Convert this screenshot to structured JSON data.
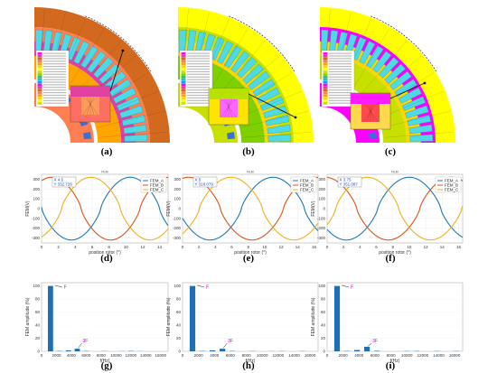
{
  "labels": {
    "a": "(a)",
    "b": "(b)",
    "c": "(c)",
    "d": "(d)",
    "e": "(e)",
    "f": "(f)",
    "g": "(g)",
    "h": "(h)",
    "i": "(i)"
  },
  "motor": {
    "colors": [
      "#ff00ff",
      "#e040a0",
      "#d2691e",
      "#ff7f50",
      "#ffa500",
      "#ffd700",
      "#ffff00",
      "#c8e000",
      "#7fd000",
      "#3cb371",
      "#00ced1",
      "#1e90ff"
    ],
    "copper_color": "#4dd9e6",
    "magnet_color": "#3b6fd6"
  },
  "fem": {
    "xlabel": "position rotor (°)",
    "ylabel": "FEM(V)",
    "colors": [
      "#1f77b4",
      "#d95319",
      "#edb120"
    ],
    "legend": [
      "FEM_A",
      "FEM_B",
      "FEM_C"
    ],
    "panels": [
      {
        "title": "FEM",
        "tip_x": "X 4.5",
        "tip_y": "Y 332.726"
      },
      {
        "title": "FEM",
        "tip_x": "X 5",
        "tip_y": "Y 318.079"
      },
      {
        "title": "FEM",
        "tip_x": "X 3.75",
        "tip_y": "Y 351.087"
      }
    ]
  },
  "spectrum": {
    "xlabel": "f(Hz)",
    "ylabel": "FEM amplitude (%)",
    "bar_color": "#1f6fb4",
    "annot_main": "F",
    "annot_third": "3F"
  },
  "chart_data": [
    {
      "type": "line",
      "panel": "d",
      "xlabel": "position rotor (°)",
      "ylabel": "FEM(V)",
      "xlim": [
        0,
        15
      ],
      "ylim": [
        -350,
        350
      ],
      "x_ticks": [
        0,
        2,
        4,
        6,
        8,
        10,
        12,
        14
      ],
      "y_ticks": [
        -300,
        -200,
        -100,
        0,
        100,
        200,
        300
      ],
      "series": [
        {
          "name": "FEM_A"
        },
        {
          "name": "FEM_B"
        },
        {
          "name": "FEM_C"
        }
      ]
    },
    {
      "type": "line",
      "panel": "e",
      "xlabel": "position rotor (°)",
      "ylabel": "FEM(V)",
      "xlim": [
        0,
        16.5
      ],
      "ylim": [
        -350,
        350
      ],
      "x_ticks": [
        0,
        2,
        4,
        6,
        8,
        10,
        12,
        14,
        16
      ],
      "y_ticks": [
        -300,
        -200,
        -100,
        0,
        100,
        200,
        300
      ],
      "series": [
        {
          "name": "FEM_A"
        },
        {
          "name": "FEM_B"
        },
        {
          "name": "FEM_C"
        }
      ]
    },
    {
      "type": "line",
      "panel": "f",
      "xlabel": "position rotor (°)",
      "ylabel": "FEM(V)",
      "xlim": [
        0,
        16.5
      ],
      "ylim": [
        -350,
        350
      ],
      "x_ticks": [
        0,
        2,
        4,
        6,
        8,
        10,
        12,
        14,
        16
      ],
      "y_ticks": [
        -300,
        -200,
        -100,
        0,
        100,
        200,
        300
      ],
      "series": [
        {
          "name": "FEM_A"
        },
        {
          "name": "FEM_B"
        },
        {
          "name": "FEM_C"
        }
      ]
    },
    {
      "type": "bar",
      "panel": "g",
      "xlabel": "f(Hz)",
      "ylabel": "FEM amplitude (%)",
      "xlim": [
        0,
        17000
      ],
      "ylim": [
        0,
        105
      ],
      "x_ticks": [
        0,
        2000,
        4000,
        6000,
        8000,
        10000,
        12000,
        14000,
        16000
      ],
      "y_ticks": [
        0,
        20,
        40,
        60,
        80,
        100
      ],
      "x": [
        1200,
        2400,
        3600,
        4800,
        6000,
        8400,
        10800,
        12000,
        13200
      ],
      "values": [
        100,
        0.5,
        1.5,
        4,
        0.5,
        0.3,
        0.2,
        0.5,
        0.2
      ]
    },
    {
      "type": "bar",
      "panel": "h",
      "xlabel": "f(Hz)",
      "ylabel": "FEM amplitude (%)",
      "xlim": [
        0,
        17000
      ],
      "ylim": [
        0,
        105
      ],
      "x_ticks": [
        0,
        2000,
        4000,
        6000,
        8000,
        10000,
        12000,
        14000,
        16000
      ],
      "y_ticks": [
        0,
        20,
        40,
        60,
        80,
        100
      ],
      "x": [
        1250,
        2500,
        3750,
        5000,
        6250,
        8750,
        11250,
        12500,
        15000
      ],
      "values": [
        100,
        0.5,
        1.5,
        4,
        0.5,
        0.3,
        0.2,
        0.3,
        0.3
      ]
    },
    {
      "type": "bar",
      "panel": "i",
      "xlabel": "f(Hz)",
      "ylabel": "FEM amplitude (%)",
      "xlim": [
        0,
        17000
      ],
      "ylim": [
        0,
        105
      ],
      "x_ticks": [
        0,
        2000,
        4000,
        6000,
        8000,
        10000,
        12000,
        14000,
        16000
      ],
      "y_ticks": [
        0,
        20,
        40,
        60,
        80,
        100
      ],
      "x": [
        1250,
        2500,
        3750,
        5000,
        6250,
        10000,
        11250,
        13750,
        16250
      ],
      "values": [
        100,
        0.5,
        2,
        7,
        0.8,
        0.4,
        0.5,
        0.4,
        0.4
      ]
    }
  ]
}
